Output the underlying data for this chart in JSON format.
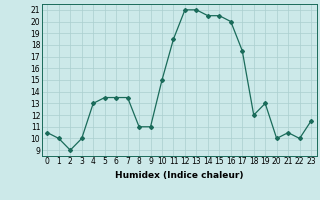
{
  "x": [
    0,
    1,
    2,
    3,
    4,
    5,
    6,
    7,
    8,
    9,
    10,
    11,
    12,
    13,
    14,
    15,
    16,
    17,
    18,
    19,
    20,
    21,
    22,
    23
  ],
  "y": [
    10.5,
    10.0,
    9.0,
    10.0,
    13.0,
    13.5,
    13.5,
    13.5,
    11.0,
    11.0,
    15.0,
    18.5,
    21.0,
    21.0,
    20.5,
    20.5,
    20.0,
    17.5,
    12.0,
    13.0,
    10.0,
    10.5,
    10.0,
    11.5
  ],
  "line_color": "#1a6b5a",
  "marker": "D",
  "marker_size": 2.0,
  "line_width": 0.9,
  "xlabel": "Humidex (Indice chaleur)",
  "bg_color": "#cce9e9",
  "grid_color": "#aacfcf",
  "ylim": [
    8.5,
    21.5
  ],
  "xlim": [
    -0.5,
    23.5
  ],
  "yticks": [
    9,
    10,
    11,
    12,
    13,
    14,
    15,
    16,
    17,
    18,
    19,
    20,
    21
  ],
  "xticks": [
    0,
    1,
    2,
    3,
    4,
    5,
    6,
    7,
    8,
    9,
    10,
    11,
    12,
    13,
    14,
    15,
    16,
    17,
    18,
    19,
    20,
    21,
    22,
    23
  ],
  "tick_fontsize": 5.5,
  "xlabel_fontsize": 6.5
}
